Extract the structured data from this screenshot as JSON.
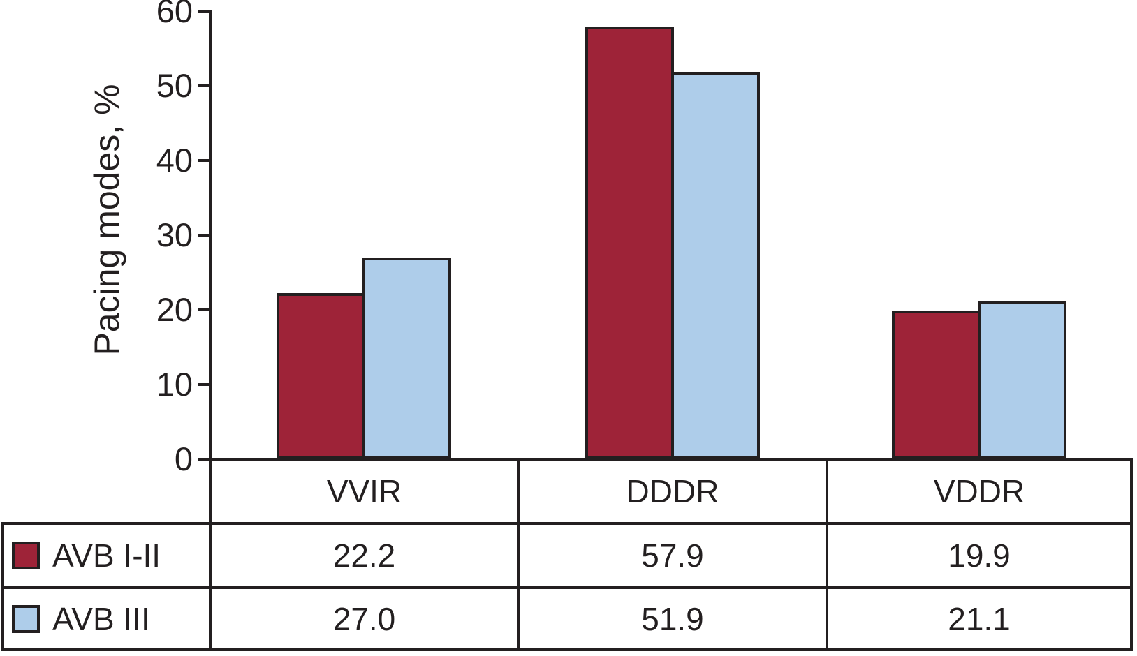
{
  "chart_data": {
    "type": "bar",
    "title": "",
    "ylabel": "Pacing modes, %",
    "xlabel": "",
    "ylim": [
      0,
      60
    ],
    "yticks": [
      60,
      50,
      40,
      30,
      20,
      10,
      0
    ],
    "grid": false,
    "legend_position": "table-left",
    "categories": [
      "VVIR",
      "DDDR",
      "VDDR"
    ],
    "series": [
      {
        "name": "AVB I-II",
        "color": "#9E2338",
        "values": [
          22.2,
          57.9,
          19.9
        ],
        "display": [
          "22.2",
          "57.9",
          "19.9"
        ]
      },
      {
        "name": "AVB III",
        "color": "#AECDEA",
        "values": [
          27.0,
          51.9,
          21.1
        ],
        "display": [
          "27.0",
          "51.9",
          "21.1"
        ]
      }
    ]
  },
  "colors": {
    "axis": "#231F20",
    "table_border": "#231F20",
    "text": "#231F20",
    "background": "#FFFFFF"
  }
}
